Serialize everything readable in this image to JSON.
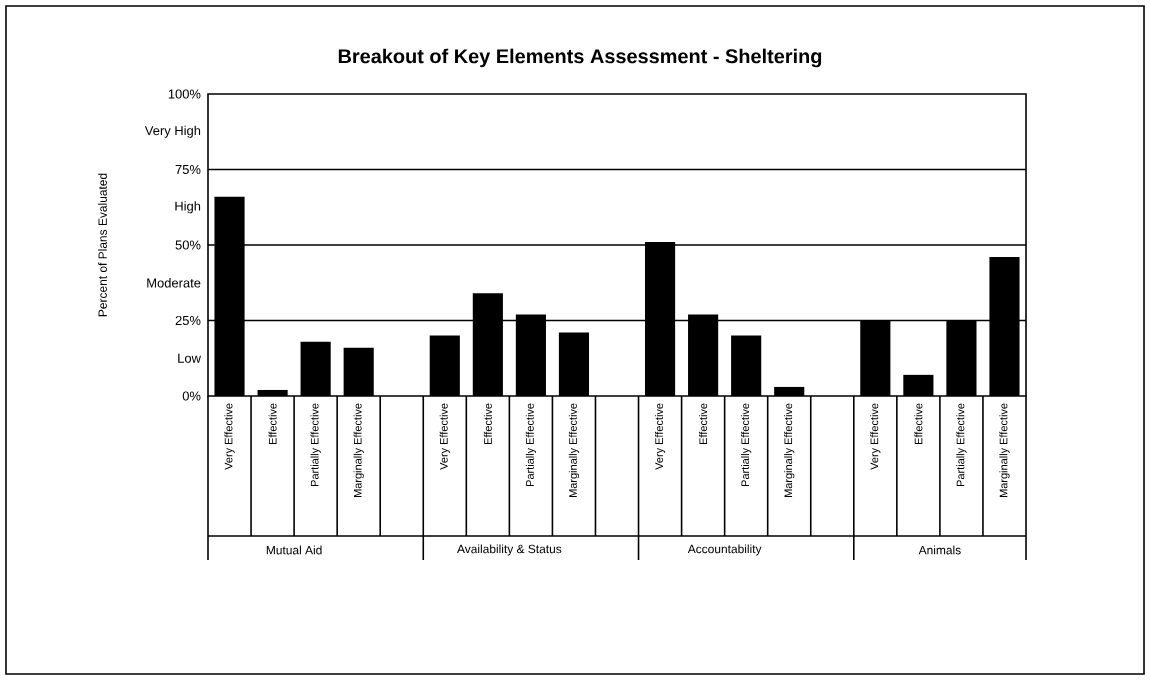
{
  "chart_data": {
    "type": "bar",
    "title": "Breakout of Key Elements Assessment - Sheltering",
    "ylabel": "Percent of Plans Evaluated",
    "categories": [
      "Very Effective",
      "Effective",
      "Partially Effective",
      "Marginally Effective",
      null,
      "Very Effective",
      "Effective",
      "Partially Effective",
      "Marginally Effective",
      null,
      "Very Effective",
      "Effective",
      "Partially Effective",
      "Marginally Effective",
      null,
      "Very Effective",
      "Effective",
      "Partially Effective",
      "Marginally Effective"
    ],
    "values": [
      66,
      2,
      18,
      16,
      null,
      20,
      34,
      27,
      21,
      null,
      51,
      27,
      20,
      3,
      null,
      25,
      7,
      25,
      46
    ],
    "color": "#000000",
    "ylim": [
      0,
      100
    ],
    "yticks": [
      {
        "value": 0,
        "label": "0%"
      },
      {
        "value": 12.5,
        "label": "Low"
      },
      {
        "value": 25,
        "label": "25%"
      },
      {
        "value": 37.5,
        "label": "Moderate"
      },
      {
        "value": 50,
        "label": "50%"
      },
      {
        "value": 62.5,
        "label": "High"
      },
      {
        "value": 75,
        "label": "75%"
      },
      {
        "value": 87.5,
        "label": "Very High"
      },
      {
        "value": 100,
        "label": "100%"
      }
    ],
    "ref_lines": [
      {
        "axis": "y",
        "value": 25
      },
      {
        "axis": "y",
        "value": 50
      },
      {
        "axis": "y",
        "value": 75
      }
    ],
    "annotations": [
      "Mutual Aid",
      "Availability & Status",
      "Accountability",
      "Animals"
    ]
  }
}
